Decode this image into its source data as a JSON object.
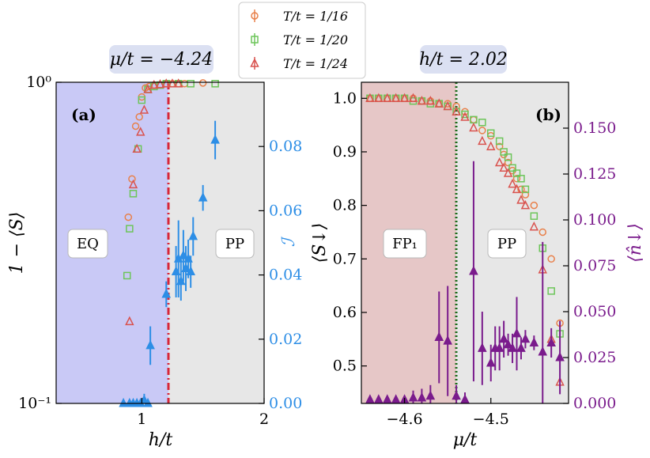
{
  "colors": {
    "series_16": "#e8804a",
    "series_20": "#6dc55a",
    "series_24": "#d9534f",
    "cyan": "#2d8ee6",
    "purple": "#7a1b8c",
    "eq_region": "#c9c9f6",
    "pp_region": "#e7e7e7",
    "fp_region": "#e6c7c7",
    "line_a": "#d72638",
    "line_b": "#1a6b1a",
    "param_box": "#dbe0f2"
  },
  "legend": [
    "T/t = 1/16",
    "T/t = 1/20",
    "T/t = 1/24"
  ],
  "chart_data": [
    {
      "id": "a",
      "type": "scatter",
      "panel_label": "(a)",
      "param_label": "μ/t = −4.24",
      "xlabel": "h/t",
      "ylabel": "1 − ⟨S⟩",
      "ylabel_right": "ℐ",
      "xlim": [
        0.3,
        2.0
      ],
      "ylim": [
        0.1,
        1.0
      ],
      "yscale": "log",
      "y2lim": [
        0.0,
        0.1
      ],
      "xticks": [
        "1",
        "2"
      ],
      "xtick_values": [
        1,
        2
      ],
      "yticks": [
        "10⁰",
        "10⁻¹"
      ],
      "ytick_values": [
        1.0,
        0.1
      ],
      "y2ticks": [
        "0.00",
        "0.02",
        "0.04",
        "0.06",
        "0.08"
      ],
      "y2tick_values": [
        0.0,
        0.02,
        0.04,
        0.06,
        0.08
      ],
      "boundary_x": 1.2,
      "region_labels": [
        "EQ",
        "PP"
      ],
      "series": [
        {
          "name": "T/t = 1/16",
          "marker": "circle",
          "x": [
            0.89,
            0.92,
            0.95,
            0.98,
            1.0,
            1.03,
            1.06,
            1.1,
            1.15,
            1.2,
            1.25,
            1.3,
            1.35,
            1.5
          ],
          "y": [
            0.38,
            0.5,
            0.73,
            0.78,
            0.9,
            0.96,
            0.97,
            0.98,
            0.98,
            0.99,
            0.99,
            0.99,
            0.99,
            0.995
          ]
        },
        {
          "name": "T/t = 1/20",
          "marker": "square",
          "x": [
            0.88,
            0.9,
            0.93,
            0.97,
            1.0,
            1.05,
            1.1,
            1.15,
            1.2,
            1.3,
            1.4,
            1.6
          ],
          "y": [
            0.25,
            0.35,
            0.45,
            0.62,
            0.88,
            0.95,
            0.97,
            0.98,
            0.99,
            0.99,
            0.99,
            0.99
          ]
        },
        {
          "name": "T/t = 1/24",
          "marker": "triangle",
          "x": [
            0.9,
            0.93,
            0.96,
            0.99,
            1.02,
            1.05,
            1.1,
            1.15,
            1.2,
            1.25,
            1.3
          ],
          "y": [
            0.18,
            0.48,
            0.62,
            0.7,
            0.82,
            0.95,
            0.98,
            0.985,
            0.99,
            0.99,
            0.99
          ]
        },
        {
          "name": "I",
          "marker": "filled-triangle",
          "axis": "right",
          "x": [
            0.85,
            0.9,
            0.93,
            0.96,
            0.99,
            1.02,
            1.05,
            1.07,
            1.2,
            1.28,
            1.3,
            1.32,
            1.34,
            1.36,
            1.38,
            1.4,
            1.42,
            1.5,
            1.6
          ],
          "y": [
            0.0,
            0.0,
            0.0,
            0.0,
            0.0,
            0.001,
            0.0,
            0.018,
            0.034,
            0.041,
            0.045,
            0.038,
            0.046,
            0.042,
            0.045,
            0.041,
            0.052,
            0.064,
            0.082
          ],
          "err": [
            0.0,
            0.0,
            0.0,
            0.0,
            0.0,
            0.002,
            0.001,
            0.006,
            0.004,
            0.008,
            0.012,
            0.006,
            0.008,
            0.007,
            0.006,
            0.005,
            0.006,
            0.004,
            0.006
          ]
        }
      ]
    },
    {
      "id": "b",
      "type": "scatter",
      "panel_label": "(b)",
      "param_label": "h/t = 2.02",
      "xlabel": "μ/t",
      "ylabel": "⟨S↓⟩",
      "ylabel_right": "⟨n̂↓⟩",
      "xlim": [
        -4.65,
        -4.41
      ],
      "ylim": [
        0.43,
        1.03
      ],
      "y2lim": [
        0.0,
        0.175
      ],
      "xticks": [
        "−4.6",
        "−4.5"
      ],
      "xtick_values": [
        -4.6,
        -4.5
      ],
      "yticks": [
        "0.5",
        "0.6",
        "0.7",
        "0.8",
        "0.9",
        "1.0"
      ],
      "ytick_values": [
        0.5,
        0.6,
        0.7,
        0.8,
        0.9,
        1.0
      ],
      "y2ticks": [
        "0.000",
        "0.025",
        "0.050",
        "0.075",
        "0.100",
        "0.125",
        "0.150"
      ],
      "y2tick_values": [
        0.0,
        0.025,
        0.05,
        0.075,
        0.1,
        0.125,
        0.15
      ],
      "boundary_x": -4.555,
      "region_labels": [
        "FP₁",
        "PP"
      ],
      "series": [
        {
          "name": "T/t = 1/16",
          "marker": "circle",
          "x": [
            -4.64,
            -4.63,
            -4.62,
            -4.61,
            -4.6,
            -4.59,
            -4.58,
            -4.57,
            -4.56,
            -4.55,
            -4.54,
            -4.53,
            -4.52,
            -4.51,
            -4.5,
            -4.49,
            -4.485,
            -4.48,
            -4.475,
            -4.47,
            -4.465,
            -4.46,
            -4.45,
            -4.44,
            -4.43,
            -4.42
          ],
          "y": [
            1.0,
            1.0,
            1.0,
            1.0,
            1.0,
            1.0,
            0.995,
            0.995,
            0.99,
            0.99,
            0.985,
            0.975,
            0.96,
            0.94,
            0.93,
            0.91,
            0.895,
            0.88,
            0.865,
            0.85,
            0.83,
            0.82,
            0.8,
            0.75,
            0.7,
            0.58
          ]
        },
        {
          "name": "T/t = 1/20",
          "marker": "square",
          "x": [
            -4.64,
            -4.63,
            -4.62,
            -4.61,
            -4.6,
            -4.59,
            -4.58,
            -4.57,
            -4.56,
            -4.55,
            -4.54,
            -4.53,
            -4.52,
            -4.51,
            -4.5,
            -4.49,
            -4.485,
            -4.48,
            -4.475,
            -4.47,
            -4.465,
            -4.46,
            -4.45,
            -4.44,
            -4.43,
            -4.42
          ],
          "y": [
            1.0,
            1.0,
            1.0,
            1.0,
            1.0,
            0.995,
            0.995,
            0.99,
            0.99,
            0.985,
            0.975,
            0.97,
            0.96,
            0.955,
            0.935,
            0.92,
            0.9,
            0.89,
            0.87,
            0.86,
            0.85,
            0.83,
            0.78,
            0.72,
            0.64,
            0.56
          ]
        },
        {
          "name": "T/t = 1/24",
          "marker": "triangle",
          "x": [
            -4.64,
            -4.63,
            -4.62,
            -4.61,
            -4.6,
            -4.59,
            -4.58,
            -4.57,
            -4.56,
            -4.55,
            -4.54,
            -4.53,
            -4.52,
            -4.51,
            -4.5,
            -4.49,
            -4.485,
            -4.48,
            -4.475,
            -4.47,
            -4.465,
            -4.46,
            -4.45,
            -4.44,
            -4.43,
            -4.42
          ],
          "y": [
            1.0,
            1.0,
            1.0,
            1.0,
            1.0,
            1.0,
            0.995,
            0.995,
            0.99,
            0.985,
            0.975,
            0.965,
            0.945,
            0.92,
            0.91,
            0.88,
            0.87,
            0.86,
            0.84,
            0.83,
            0.81,
            0.8,
            0.76,
            0.68,
            0.55,
            0.47
          ]
        },
        {
          "name": "n↓",
          "marker": "filled-triangle",
          "axis": "right",
          "x": [
            -4.64,
            -4.63,
            -4.62,
            -4.61,
            -4.6,
            -4.59,
            -4.58,
            -4.57,
            -4.56,
            -4.55,
            -4.54,
            -4.53,
            -4.52,
            -4.51,
            -4.5,
            -4.495,
            -4.49,
            -4.485,
            -4.48,
            -4.475,
            -4.47,
            -4.465,
            -4.46,
            -4.45,
            -4.44,
            -4.43,
            -4.42
          ],
          "y": [
            0.002,
            0.002,
            0.002,
            0.002,
            0.002,
            0.003,
            0.003,
            0.004,
            0.036,
            0.034,
            0.004,
            0.002,
            0.072,
            0.03,
            0.022,
            0.03,
            0.03,
            0.035,
            0.032,
            0.03,
            0.038,
            0.03,
            0.035,
            0.033,
            0.028,
            0.033,
            0.025
          ],
          "err": [
            0.002,
            0.002,
            0.002,
            0.002,
            0.002,
            0.004,
            0.005,
            0.006,
            0.025,
            0.03,
            0.006,
            0.004,
            0.06,
            0.02,
            0.01,
            0.012,
            0.012,
            0.01,
            0.006,
            0.008,
            0.02,
            0.006,
            0.005,
            0.004,
            0.06,
            0.008,
            0.02
          ]
        }
      ]
    }
  ]
}
